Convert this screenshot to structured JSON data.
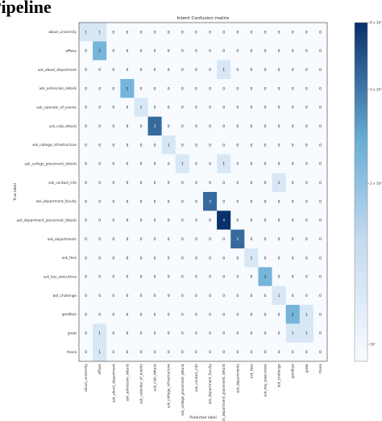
{
  "page": {
    "heading": "Pipeline"
  },
  "chart_data": {
    "type": "heatmap",
    "title": "Intent Confusion matrix",
    "xlabel": "Predicted label",
    "ylabel": "True label",
    "labels": [
      "about_university",
      "affixes",
      "ask_about_department",
      "ask_admission_details",
      "ask_calendar_of_events",
      "ask_club_details",
      "ask_college_infrastructure",
      "ask_college_placement_details",
      "ask_contact_info",
      "ask_department_faculty",
      "ask_department_placement_details",
      "ask_departments",
      "ask_fees",
      "ask_key_executives",
      "bot_challenge",
      "goodbye",
      "greet",
      "thank"
    ],
    "matrix": [
      [
        1,
        1,
        0,
        0,
        0,
        0,
        0,
        0,
        0,
        0,
        0,
        0,
        0,
        0,
        0,
        0,
        0,
        0
      ],
      [
        0,
        2,
        0,
        0,
        0,
        0,
        0,
        0,
        0,
        0,
        0,
        0,
        0,
        0,
        0,
        0,
        0,
        0
      ],
      [
        0,
        0,
        0,
        0,
        0,
        0,
        0,
        0,
        0,
        0,
        1,
        0,
        0,
        0,
        0,
        0,
        0,
        0
      ],
      [
        0,
        0,
        0,
        2,
        0,
        0,
        0,
        0,
        0,
        0,
        0,
        0,
        0,
        0,
        0,
        0,
        0,
        0
      ],
      [
        0,
        0,
        0,
        0,
        1,
        0,
        0,
        0,
        0,
        0,
        0,
        0,
        0,
        0,
        0,
        0,
        0,
        0
      ],
      [
        0,
        0,
        0,
        0,
        0,
        3,
        0,
        0,
        0,
        0,
        0,
        0,
        0,
        0,
        0,
        0,
        0,
        0
      ],
      [
        0,
        0,
        0,
        0,
        0,
        0,
        1,
        0,
        0,
        0,
        0,
        0,
        0,
        0,
        0,
        0,
        0,
        0
      ],
      [
        0,
        0,
        0,
        0,
        0,
        0,
        0,
        1,
        0,
        0,
        1,
        0,
        0,
        0,
        0,
        0,
        0,
        0
      ],
      [
        0,
        0,
        0,
        0,
        0,
        0,
        0,
        0,
        0,
        0,
        0,
        0,
        0,
        0,
        1,
        0,
        0,
        0
      ],
      [
        0,
        0,
        0,
        0,
        0,
        0,
        0,
        0,
        0,
        3,
        0,
        0,
        0,
        0,
        0,
        0,
        0,
        0
      ],
      [
        0,
        0,
        0,
        0,
        0,
        0,
        0,
        0,
        0,
        0,
        4,
        0,
        0,
        0,
        0,
        0,
        0,
        0
      ],
      [
        0,
        0,
        0,
        0,
        0,
        0,
        0,
        0,
        0,
        0,
        0,
        3,
        0,
        0,
        0,
        0,
        0,
        0
      ],
      [
        0,
        0,
        0,
        0,
        0,
        0,
        0,
        0,
        0,
        0,
        0,
        0,
        1,
        0,
        0,
        0,
        0,
        0
      ],
      [
        0,
        0,
        0,
        0,
        0,
        0,
        0,
        0,
        0,
        0,
        0,
        0,
        0,
        2,
        0,
        0,
        0,
        0
      ],
      [
        0,
        0,
        0,
        0,
        0,
        0,
        0,
        0,
        0,
        0,
        0,
        0,
        0,
        0,
        1,
        0,
        0,
        0
      ],
      [
        0,
        0,
        0,
        0,
        0,
        0,
        0,
        0,
        0,
        0,
        0,
        0,
        0,
        0,
        0,
        2,
        1,
        0
      ],
      [
        0,
        1,
        0,
        0,
        0,
        0,
        0,
        0,
        0,
        0,
        0,
        0,
        0,
        0,
        0,
        1,
        1,
        0
      ],
      [
        0,
        1,
        0,
        0,
        0,
        0,
        0,
        0,
        0,
        0,
        0,
        0,
        0,
        0,
        0,
        0,
        0,
        0
      ]
    ],
    "colormap": "Blues",
    "colorbar": {
      "ticks": [
        "4 x 10⁰",
        "3 x 10⁰",
        "2 x 10⁰",
        "10⁰"
      ],
      "values": [
        4,
        3,
        2,
        1
      ],
      "scale": "log"
    },
    "grid": false
  }
}
